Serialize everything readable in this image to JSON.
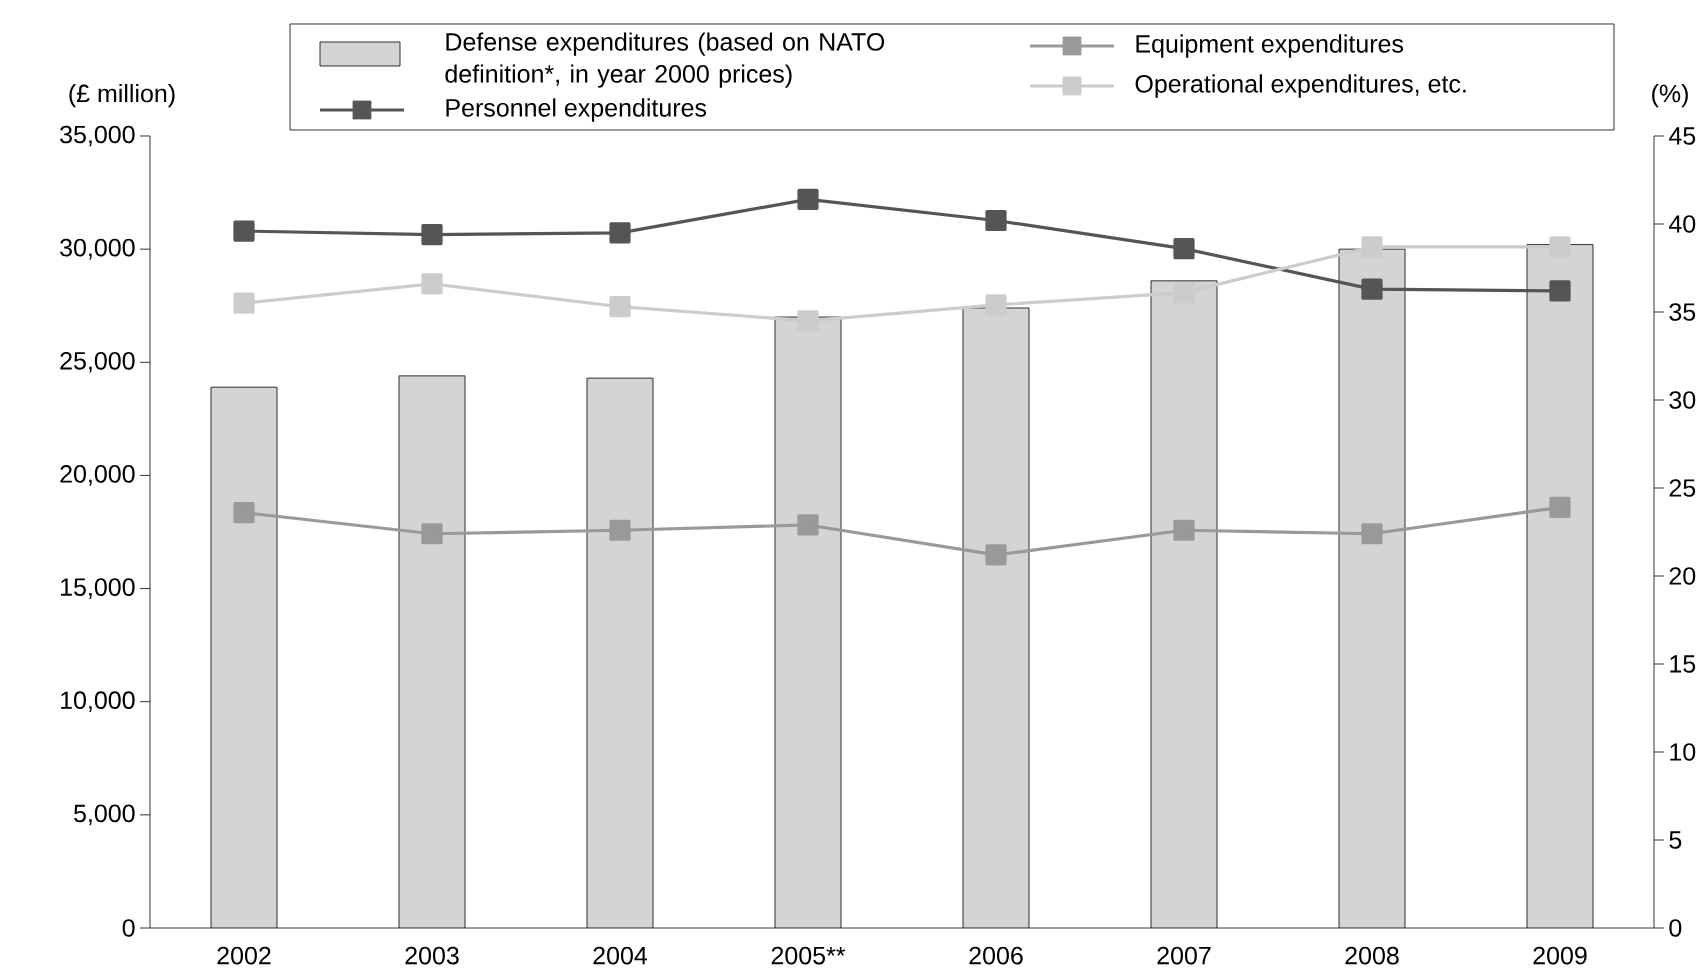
{
  "chart_data": {
    "type": "bar",
    "categories": [
      "2002",
      "2003",
      "2004",
      "2005**",
      "2006",
      "2007",
      "2008",
      "2009"
    ],
    "series": [
      {
        "name": "Defense expenditures (based on NATO definition*, in year 2000 prices)",
        "color": "#d4d4d4",
        "values": [
          23900,
          24400,
          24300,
          27000,
          27400,
          28600,
          30000,
          30200
        ]
      },
      {
        "name": "Equipment expenditures",
        "type": "line",
        "axis": "y2",
        "color": "#999999",
        "values": [
          23.6,
          22.4,
          22.6,
          22.9,
          21.2,
          22.6,
          22.4,
          23.9
        ]
      },
      {
        "name": "Personnel expenditures",
        "type": "line",
        "axis": "y2",
        "color": "#555555",
        "values": [
          39.6,
          39.4,
          39.5,
          41.4,
          40.2,
          38.6,
          36.3,
          36.2
        ]
      },
      {
        "name": "Operational expenditures, etc.",
        "type": "line",
        "axis": "y2",
        "color": "#cccccc",
        "values": [
          35.5,
          36.6,
          35.3,
          34.5,
          35.4,
          36.1,
          38.7,
          38.7
        ]
      }
    ],
    "ylabel": "(£ million)",
    "y2label": "(%)",
    "ylim": [
      0,
      35000
    ],
    "yticks": [
      0,
      {
        "value": 5000,
        "label": "5,000"
      },
      {
        "value": 10000,
        "label": "10,000"
      },
      {
        "value": 15000,
        "label": "15,000"
      },
      {
        "value": 20000,
        "label": "20,000"
      },
      {
        "value": 25000,
        "label": "25,000"
      },
      {
        "value": 30000,
        "label": "30,000"
      },
      {
        "value": 35000,
        "label": "35,000"
      }
    ],
    "y2lim": [
      0,
      45
    ],
    "y2ticks": [
      0,
      5,
      10,
      15,
      20,
      25,
      30,
      35,
      40,
      45
    ],
    "legend": "top",
    "marker": "square",
    "line_style": "solid"
  }
}
